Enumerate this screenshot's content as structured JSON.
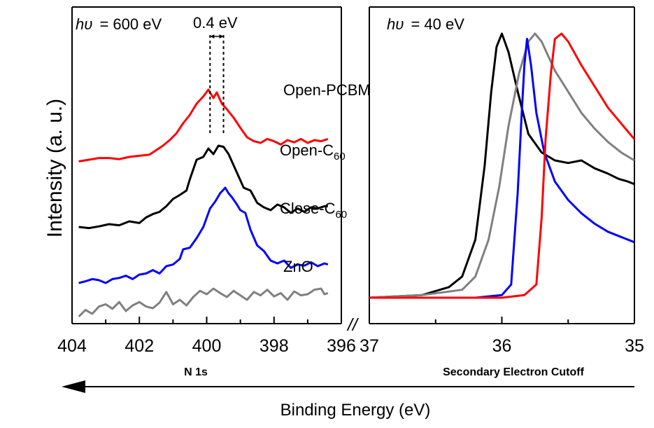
{
  "chart_data": [
    {
      "panel": "left",
      "type": "line",
      "title": "N 1s",
      "photon_energy": "600 eV",
      "ylabel": "Intensity (a. u.)",
      "xlabel": "Binding Energy (eV)",
      "xlim": [
        404,
        396
      ],
      "xticks": [
        "404",
        "402",
        "400",
        "398",
        "396"
      ],
      "annotation": "0.4 eV",
      "series": [
        {
          "name": "Open-PCBM",
          "color": "#ff0000",
          "offset": 2.75,
          "scale": 1.0,
          "points": [
            [
              403.8,
              0.02
            ],
            [
              403.5,
              0.05
            ],
            [
              403.2,
              0.08
            ],
            [
              402.9,
              0.08
            ],
            [
              402.6,
              0.06
            ],
            [
              402.3,
              0.1
            ],
            [
              402.0,
              0.12
            ],
            [
              401.7,
              0.14
            ],
            [
              401.5,
              0.22
            ],
            [
              401.3,
              0.3
            ],
            [
              401.1,
              0.4
            ],
            [
              400.9,
              0.52
            ],
            [
              400.7,
              0.7
            ],
            [
              400.5,
              0.85
            ],
            [
              400.3,
              1.05
            ],
            [
              400.1,
              1.18
            ],
            [
              399.95,
              1.3
            ],
            [
              399.8,
              1.15
            ],
            [
              399.7,
              1.25
            ],
            [
              399.55,
              1.05
            ],
            [
              399.4,
              0.95
            ],
            [
              399.2,
              0.8
            ],
            [
              399.0,
              0.62
            ],
            [
              398.8,
              0.45
            ],
            [
              398.6,
              0.38
            ],
            [
              398.4,
              0.35
            ],
            [
              398.2,
              0.42
            ],
            [
              398.0,
              0.38
            ],
            [
              397.8,
              0.32
            ],
            [
              397.6,
              0.4
            ],
            [
              397.4,
              0.36
            ],
            [
              397.2,
              0.42
            ],
            [
              397.0,
              0.35
            ],
            [
              396.8,
              0.4
            ],
            [
              396.6,
              0.38
            ],
            [
              396.4,
              0.42
            ]
          ]
        },
        {
          "name": "Open-C60",
          "color": "#000000",
          "offset": 1.55,
          "scale": 1.0,
          "points": [
            [
              403.8,
              0.05
            ],
            [
              403.5,
              0.03
            ],
            [
              403.2,
              0.06
            ],
            [
              402.9,
              0.1
            ],
            [
              402.6,
              0.08
            ],
            [
              402.3,
              0.15
            ],
            [
              402.0,
              0.12
            ],
            [
              401.8,
              0.22
            ],
            [
              401.6,
              0.28
            ],
            [
              401.4,
              0.32
            ],
            [
              401.2,
              0.42
            ],
            [
              401.0,
              0.55
            ],
            [
              400.8,
              0.62
            ],
            [
              400.6,
              0.7
            ],
            [
              400.5,
              0.9
            ],
            [
              400.3,
              1.25
            ],
            [
              400.1,
              1.3
            ],
            [
              399.95,
              1.45
            ],
            [
              399.8,
              1.35
            ],
            [
              399.65,
              1.5
            ],
            [
              399.5,
              1.48
            ],
            [
              399.35,
              1.35
            ],
            [
              399.2,
              1.15
            ],
            [
              399.05,
              0.95
            ],
            [
              398.9,
              0.75
            ],
            [
              398.7,
              0.7
            ],
            [
              398.5,
              0.48
            ],
            [
              398.3,
              0.4
            ],
            [
              398.1,
              0.35
            ],
            [
              397.9,
              0.45
            ],
            [
              397.7,
              0.4
            ],
            [
              397.5,
              0.3
            ],
            [
              397.3,
              0.38
            ],
            [
              397.1,
              0.32
            ],
            [
              396.9,
              0.4
            ],
            [
              396.7,
              0.38
            ],
            [
              396.5,
              0.42
            ],
            [
              396.4,
              0.42
            ]
          ]
        },
        {
          "name": "Close-C60",
          "color": "#0000ff",
          "offset": 0.55,
          "scale": 1.0,
          "points": [
            [
              403.8,
              0.05
            ],
            [
              403.6,
              0.08
            ],
            [
              403.4,
              0.12
            ],
            [
              403.2,
              0.1
            ],
            [
              403.0,
              0.05
            ],
            [
              402.8,
              0.12
            ],
            [
              402.6,
              0.14
            ],
            [
              402.4,
              0.18
            ],
            [
              402.2,
              0.12
            ],
            [
              402.0,
              0.2
            ],
            [
              401.8,
              0.22
            ],
            [
              401.6,
              0.28
            ],
            [
              401.4,
              0.22
            ],
            [
              401.2,
              0.35
            ],
            [
              401.0,
              0.38
            ],
            [
              400.8,
              0.48
            ],
            [
              400.7,
              0.65
            ],
            [
              400.5,
              0.68
            ],
            [
              400.3,
              0.85
            ],
            [
              400.1,
              1.05
            ],
            [
              399.9,
              1.38
            ],
            [
              399.75,
              1.5
            ],
            [
              399.6,
              1.65
            ],
            [
              399.45,
              1.75
            ],
            [
              399.35,
              1.65
            ],
            [
              399.25,
              1.58
            ],
            [
              399.1,
              1.45
            ],
            [
              399.0,
              1.35
            ],
            [
              398.85,
              1.3
            ],
            [
              398.7,
              1.0
            ],
            [
              398.5,
              0.72
            ],
            [
              398.3,
              0.62
            ],
            [
              398.1,
              0.45
            ],
            [
              397.9,
              0.4
            ],
            [
              397.7,
              0.45
            ],
            [
              397.5,
              0.32
            ],
            [
              397.3,
              0.38
            ],
            [
              397.1,
              0.36
            ],
            [
              396.9,
              0.42
            ],
            [
              396.7,
              0.35
            ],
            [
              396.5,
              0.4
            ],
            [
              396.4,
              0.38
            ]
          ]
        },
        {
          "name": "ZnO",
          "color": "#808080",
          "offset": 0.0,
          "scale": 1.0,
          "points": [
            [
              403.8,
              0.0
            ],
            [
              403.6,
              0.12
            ],
            [
              403.4,
              0.05
            ],
            [
              403.2,
              0.18
            ],
            [
              403.0,
              0.22
            ],
            [
              402.8,
              0.14
            ],
            [
              402.6,
              0.26
            ],
            [
              402.4,
              0.1
            ],
            [
              402.2,
              0.2
            ],
            [
              402.0,
              0.26
            ],
            [
              401.8,
              0.18
            ],
            [
              401.6,
              0.15
            ],
            [
              401.4,
              0.25
            ],
            [
              401.2,
              0.44
            ],
            [
              401.0,
              0.22
            ],
            [
              400.8,
              0.3
            ],
            [
              400.6,
              0.2
            ],
            [
              400.4,
              0.35
            ],
            [
              400.2,
              0.46
            ],
            [
              400.0,
              0.4
            ],
            [
              399.8,
              0.5
            ],
            [
              399.6,
              0.42
            ],
            [
              399.4,
              0.35
            ],
            [
              399.2,
              0.46
            ],
            [
              399.0,
              0.38
            ],
            [
              398.8,
              0.3
            ],
            [
              398.6,
              0.44
            ],
            [
              398.4,
              0.38
            ],
            [
              398.2,
              0.48
            ],
            [
              398.0,
              0.36
            ],
            [
              397.8,
              0.42
            ],
            [
              397.6,
              0.3
            ],
            [
              397.4,
              0.45
            ],
            [
              397.2,
              0.38
            ],
            [
              397.0,
              0.4
            ],
            [
              396.8,
              0.48
            ],
            [
              396.6,
              0.5
            ],
            [
              396.5,
              0.4
            ],
            [
              396.4,
              0.42
            ]
          ]
        }
      ],
      "energy_marks": [
        399.9,
        399.5
      ]
    },
    {
      "panel": "right",
      "type": "line",
      "title": "Secondary Electron Cutoff",
      "photon_energy": "40 eV",
      "xlim": [
        37,
        35
      ],
      "xticks": [
        "37",
        "36",
        "35"
      ],
      "series": [
        {
          "name": "",
          "color": "#000000",
          "points": [
            [
              37.0,
              0.0
            ],
            [
              36.6,
              0.01
            ],
            [
              36.4,
              0.04
            ],
            [
              36.3,
              0.08
            ],
            [
              36.2,
              0.22
            ],
            [
              36.13,
              0.5
            ],
            [
              36.08,
              0.78
            ],
            [
              36.04,
              0.95
            ],
            [
              36.0,
              1.0
            ],
            [
              35.95,
              0.93
            ],
            [
              35.88,
              0.78
            ],
            [
              35.8,
              0.62
            ],
            [
              35.7,
              0.55
            ],
            [
              35.6,
              0.52
            ],
            [
              35.5,
              0.51
            ],
            [
              35.4,
              0.52
            ],
            [
              35.3,
              0.49
            ],
            [
              35.2,
              0.47
            ],
            [
              35.12,
              0.45
            ],
            [
              35.05,
              0.44
            ],
            [
              35.0,
              0.43
            ]
          ]
        },
        {
          "name": "",
          "color": "#808080",
          "points": [
            [
              37.0,
              0.0
            ],
            [
              36.6,
              0.01
            ],
            [
              36.3,
              0.03
            ],
            [
              36.2,
              0.08
            ],
            [
              36.1,
              0.22
            ],
            [
              36.02,
              0.42
            ],
            [
              35.95,
              0.65
            ],
            [
              35.87,
              0.85
            ],
            [
              35.8,
              0.97
            ],
            [
              35.75,
              1.0
            ],
            [
              35.7,
              0.97
            ],
            [
              35.6,
              0.86
            ],
            [
              35.5,
              0.78
            ],
            [
              35.4,
              0.7
            ],
            [
              35.3,
              0.64
            ],
            [
              35.2,
              0.59
            ],
            [
              35.1,
              0.55
            ],
            [
              35.0,
              0.52
            ]
          ]
        },
        {
          "name": "",
          "color": "#0000ff",
          "points": [
            [
              37.0,
              0.0
            ],
            [
              36.2,
              0.0
            ],
            [
              36.0,
              0.01
            ],
            [
              35.93,
              0.05
            ],
            [
              35.88,
              0.4
            ],
            [
              35.85,
              0.7
            ],
            [
              35.83,
              0.88
            ],
            [
              35.81,
              0.98
            ],
            [
              35.78,
              0.88
            ],
            [
              35.74,
              0.7
            ],
            [
              35.68,
              0.55
            ],
            [
              35.6,
              0.44
            ],
            [
              35.5,
              0.37
            ],
            [
              35.4,
              0.32
            ],
            [
              35.3,
              0.28
            ],
            [
              35.2,
              0.25
            ],
            [
              35.1,
              0.23
            ],
            [
              35.0,
              0.21
            ]
          ]
        },
        {
          "name": "",
          "color": "#ff0000",
          "points": [
            [
              37.0,
              0.0
            ],
            [
              36.0,
              0.0
            ],
            [
              35.83,
              0.01
            ],
            [
              35.74,
              0.05
            ],
            [
              35.7,
              0.3
            ],
            [
              35.67,
              0.6
            ],
            [
              35.63,
              0.85
            ],
            [
              35.6,
              0.98
            ],
            [
              35.55,
              1.0
            ],
            [
              35.5,
              0.97
            ],
            [
              35.4,
              0.88
            ],
            [
              35.3,
              0.8
            ],
            [
              35.2,
              0.72
            ],
            [
              35.1,
              0.66
            ],
            [
              35.0,
              0.6
            ]
          ]
        }
      ]
    }
  ],
  "labels": {
    "open_pcbm": "Open-PCBM",
    "open_c60_base": "Open-C",
    "open_c60_sub": "60",
    "close_c60_base": "Close-C",
    "close_c60_sub": "60",
    "zno": "ZnO",
    "hv_symbol": "hυ",
    "hv_left_value": "= 600 eV",
    "hv_right_value": "= 40 eV",
    "shift": "0.4 eV",
    "break_mark": "//"
  }
}
